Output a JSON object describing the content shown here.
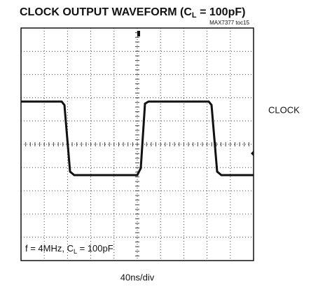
{
  "chart_data": {
    "type": "waveform",
    "title_parts": [
      "CLOCK OUTPUT WAVEFORM (C",
      "L",
      " = 100pF)"
    ],
    "figure_id": "MAX7377 toc15",
    "trace_label": "CLOCK",
    "x_scale_label": "40ns/div",
    "annotation_parts": [
      "f = 4MHz, C",
      "L",
      " = 100pF"
    ]
  }
}
